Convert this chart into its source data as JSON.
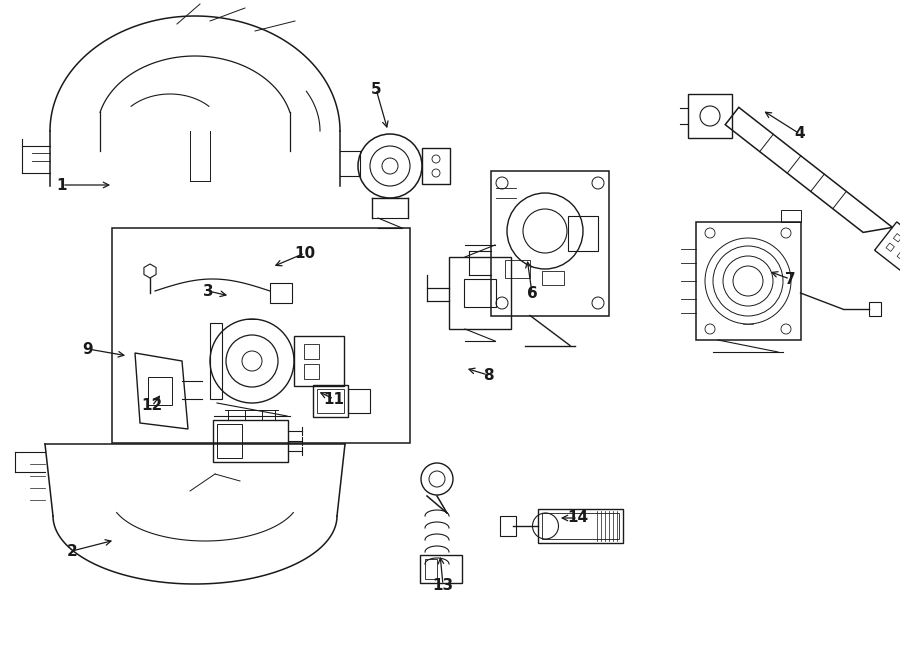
{
  "bg_color": "#ffffff",
  "line_color": "#1a1a1a",
  "fig_width": 9.0,
  "fig_height": 6.61,
  "dpi": 100,
  "lw": 1.0,
  "label_fontsize": 11,
  "label_positions": {
    "1": [
      0.068,
      0.72,
      0.125,
      0.718
    ],
    "2": [
      0.082,
      0.168,
      0.13,
      0.183
    ],
    "3": [
      0.228,
      0.57,
      0.258,
      0.562
    ],
    "4": [
      0.882,
      0.798,
      0.835,
      0.832
    ],
    "5": [
      0.418,
      0.868,
      0.428,
      0.808
    ],
    "6": [
      0.592,
      0.558,
      0.582,
      0.61
    ],
    "7": [
      0.872,
      0.578,
      0.848,
      0.592
    ],
    "8": [
      0.542,
      0.432,
      0.512,
      0.445
    ],
    "9": [
      0.098,
      0.472,
      0.145,
      0.462
    ],
    "10": [
      0.338,
      0.628,
      0.295,
      0.6
    ],
    "11": [
      0.37,
      0.395,
      0.35,
      0.41
    ],
    "12": [
      0.168,
      0.38,
      0.18,
      0.405
    ],
    "13": [
      0.492,
      0.115,
      0.487,
      0.162
    ],
    "14": [
      0.642,
      0.215,
      0.618,
      0.228
    ]
  }
}
